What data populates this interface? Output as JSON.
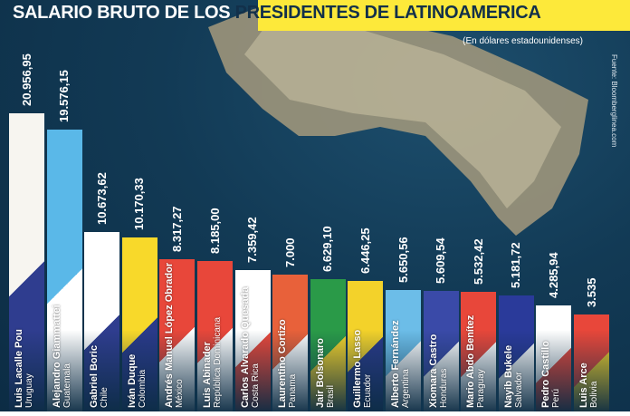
{
  "chart_data": {
    "type": "bar",
    "title": "SALARIO BRUTO DE LOS PRESIDENTES DE LATINOAMERICA",
    "title_part1": "SALARIO BRUTO DE LOS ",
    "title_part2": "PRESIDENTES DE LATINOAMERICA",
    "subtitle": "(En dólares estadounidenses)",
    "source": "Fuente: Bloomberglinea.com",
    "accent_color": "#fde93a",
    "background_color": "#123a55",
    "bars": [
      {
        "name": "Luis Lacalle Pou",
        "country": "Uruguay",
        "value": 20956.95,
        "label": "20.956,95",
        "colors": [
          "#f7f5f0",
          "#2f3d8f"
        ]
      },
      {
        "name": "Alejandro Giammattei",
        "country": "Guatemala",
        "value": 19576.15,
        "label": "19.576,15",
        "colors": [
          "#5ab8e8",
          "#ffffff"
        ]
      },
      {
        "name": "Gabriel Boric",
        "country": "Chile",
        "value": 10673.62,
        "label": "10.673,62",
        "colors": [
          "#ffffff",
          "#2f3d8f"
        ]
      },
      {
        "name": "Iván Duque",
        "country": "Colombia",
        "value": 10170.33,
        "label": "10.170,33",
        "colors": [
          "#f8d92a",
          "#2a3a8a"
        ]
      },
      {
        "name": "Andrés Manuel López Obrador",
        "country": "México",
        "value": 8317.27,
        "label": "8.317,27",
        "colors": [
          "#e8473a",
          "#ffffff"
        ]
      },
      {
        "name": "Luis Abinader",
        "country": "República Dominicana",
        "value": 8185.0,
        "label": "8.185,00",
        "colors": [
          "#e8473a",
          "#ffffff"
        ]
      },
      {
        "name": "Carlos Alvarado Quesada",
        "country": "Costa Rica",
        "value": 7359.42,
        "label": "7.359,42",
        "colors": [
          "#ffffff",
          "#e8473a"
        ]
      },
      {
        "name": "Laurentino Cortizo",
        "country": "Panama",
        "value": 7000,
        "label": "7.000",
        "colors": [
          "#e8613a",
          "#ffffff"
        ]
      },
      {
        "name": "Jair Bolsonaro",
        "country": "Brasil",
        "value": 6629.1,
        "label": "6.629,10",
        "colors": [
          "#2a9a48",
          "#f3d22a"
        ]
      },
      {
        "name": "Guillermo Lasso",
        "country": "Ecuador",
        "value": 6446.25,
        "label": "6.446,25",
        "colors": [
          "#f3d22a",
          "#2a3a8a"
        ]
      },
      {
        "name": "Alberto Fernández",
        "country": "Argentina",
        "value": 5650.56,
        "label": "5.650,56",
        "colors": [
          "#6cbde8",
          "#ffffff"
        ]
      },
      {
        "name": "Xiomara Castro",
        "country": "Honduras",
        "value": 5609.54,
        "label": "5.609,54",
        "colors": [
          "#3a4aa8",
          "#ffffff"
        ]
      },
      {
        "name": "Mario Abdo Benítez",
        "country": "Paraguay",
        "value": 5532.42,
        "label": "5.532,42",
        "colors": [
          "#e8473a",
          "#ffffff"
        ]
      },
      {
        "name": "Nayib Bukele",
        "country": "Salvador",
        "value": 5181.72,
        "label": "5.181,72",
        "colors": [
          "#2a3a9a",
          "#ffffff"
        ]
      },
      {
        "name": "Pedro Castillo",
        "country": "Perú",
        "value": 4285.94,
        "label": "4.285,94",
        "colors": [
          "#ffffff",
          "#e8473a"
        ]
      },
      {
        "name": "Luis Arce",
        "country": "Bolivia",
        "value": 3535,
        "label": "3.535",
        "colors": [
          "#e8473a",
          "#f3d22a"
        ]
      }
    ]
  }
}
